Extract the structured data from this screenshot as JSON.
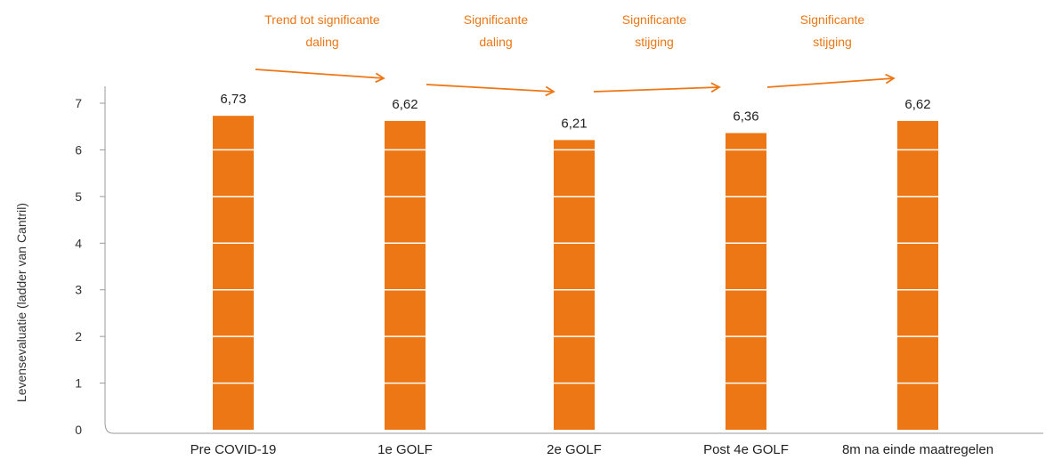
{
  "chart_data": {
    "type": "bar",
    "categories": [
      "Pre COVID-19",
      "1e GOLF",
      "2e GOLF",
      "Post 4e GOLF",
      "8m na einde maatregelen"
    ],
    "values": [
      6.73,
      6.62,
      6.21,
      6.36,
      6.62
    ],
    "value_labels": [
      "6,73",
      "6,62",
      "6,21",
      "6,36",
      "6,62"
    ],
    "ylabel": "Levensevaluatie (ladder van Cantril)",
    "ylim": [
      0,
      7
    ],
    "yticks": [
      0,
      1,
      2,
      3,
      4,
      5,
      6,
      7
    ],
    "bar_color": "#ED7615",
    "annotations": [
      {
        "line1": "Trend tot significante",
        "line2": "daling"
      },
      {
        "line1": "Significante",
        "line2": "daling"
      },
      {
        "line1": "Significante",
        "line2": "stijging"
      },
      {
        "line1": "Significante",
        "line2": "stijging"
      }
    ]
  }
}
